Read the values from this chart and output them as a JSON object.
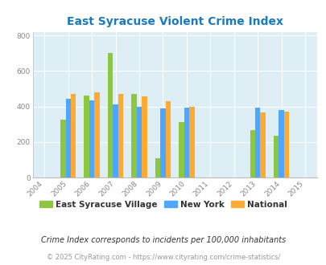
{
  "title": "East Syracuse Violent Crime Index",
  "years": [
    2004,
    2005,
    2006,
    2007,
    2008,
    2009,
    2010,
    2011,
    2012,
    2013,
    2014,
    2015
  ],
  "series": {
    "East Syracuse Village": {
      "color": "#8dc63f",
      "values": {
        "2005": 325,
        "2006": 460,
        "2007": 700,
        "2008": 472,
        "2009": 107,
        "2010": 312,
        "2013": 265,
        "2014": 235
      }
    },
    "New York": {
      "color": "#4da6ff",
      "values": {
        "2005": 445,
        "2006": 432,
        "2007": 410,
        "2008": 398,
        "2009": 388,
        "2010": 395,
        "2013": 393,
        "2014": 382
      }
    },
    "National": {
      "color": "#ffaa33",
      "values": {
        "2005": 470,
        "2006": 480,
        "2007": 472,
        "2008": 457,
        "2009": 428,
        "2010": 400,
        "2013": 365,
        "2014": 370
      }
    }
  },
  "xlim_left": 2003.5,
  "xlim_right": 2015.5,
  "ylim": [
    0,
    820
  ],
  "yticks": [
    0,
    200,
    400,
    600,
    800
  ],
  "bg_color": "#ddeef4",
  "plot_bg": "#ddeef4",
  "title_color": "#1a7abf",
  "footnote1": "Crime Index corresponds to incidents per 100,000 inhabitants",
  "footnote2": "© 2025 CityRating.com - https://www.cityrating.com/crime-statistics/",
  "bar_width": 0.22,
  "legend_labels": [
    "East Syracuse Village",
    "New York",
    "National"
  ],
  "legend_colors": [
    "#8dc63f",
    "#4da6ff",
    "#ffaa33"
  ]
}
